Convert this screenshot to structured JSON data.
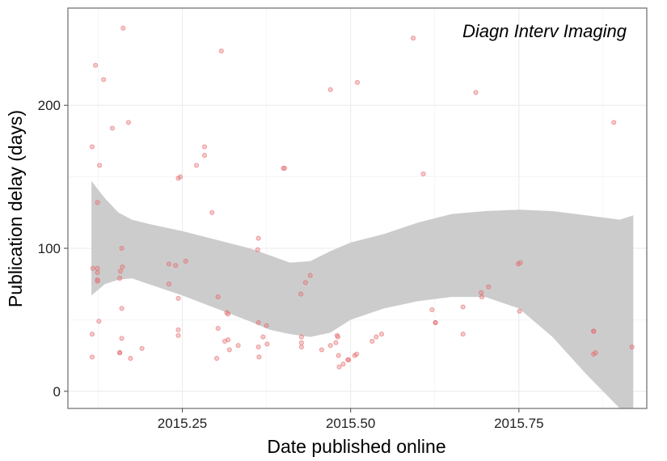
{
  "chart_data": {
    "type": "scatter",
    "title": "",
    "annotation": "Diagn Interv Imaging",
    "xlabel": "Date published online",
    "ylabel": "Publication delay (days)",
    "xlim": [
      2015.08,
      2015.94
    ],
    "ylim": [
      -12,
      268
    ],
    "x_ticks": [
      2015.25,
      2015.5,
      2015.75
    ],
    "x_tick_labels": [
      "2015.25",
      "2015.50",
      "2015.75"
    ],
    "y_ticks": [
      0,
      100,
      200
    ],
    "y_tick_labels": [
      "0",
      "100",
      "200"
    ],
    "grid": true,
    "legend": "none",
    "point_color": "#e8787a",
    "band_color": "#cccccc",
    "points": [
      [
        2015.121,
        228
      ],
      [
        2015.162,
        254
      ],
      [
        2015.133,
        218
      ],
      [
        2015.146,
        184
      ],
      [
        2015.17,
        188
      ],
      [
        2015.116,
        171
      ],
      [
        2015.127,
        158
      ],
      [
        2015.124,
        132
      ],
      [
        2015.117,
        86
      ],
      [
        2015.124,
        86
      ],
      [
        2015.124,
        83
      ],
      [
        2015.124,
        78
      ],
      [
        2015.124,
        77
      ],
      [
        2015.16,
        100
      ],
      [
        2015.161,
        87
      ],
      [
        2015.158,
        84
      ],
      [
        2015.157,
        79
      ],
      [
        2015.16,
        58
      ],
      [
        2015.126,
        49
      ],
      [
        2015.116,
        40
      ],
      [
        2015.116,
        24
      ],
      [
        2015.157,
        27
      ],
      [
        2015.157,
        27
      ],
      [
        2015.16,
        37
      ],
      [
        2015.173,
        23
      ],
      [
        2015.19,
        30
      ],
      [
        2015.23,
        89
      ],
      [
        2015.24,
        88
      ],
      [
        2015.255,
        91
      ],
      [
        2015.23,
        75
      ],
      [
        2015.244,
        65
      ],
      [
        2015.244,
        43
      ],
      [
        2015.244,
        39
      ],
      [
        2015.244,
        149
      ],
      [
        2015.247,
        150
      ],
      [
        2015.271,
        158
      ],
      [
        2015.283,
        171
      ],
      [
        2015.283,
        165
      ],
      [
        2015.294,
        125
      ],
      [
        2015.303,
        66
      ],
      [
        2015.303,
        44
      ],
      [
        2015.301,
        23
      ],
      [
        2015.308,
        238
      ],
      [
        2015.316,
        55
      ],
      [
        2015.318,
        54
      ],
      [
        2015.318,
        36
      ],
      [
        2015.313,
        35
      ],
      [
        2015.32,
        29
      ],
      [
        2015.333,
        32
      ],
      [
        2015.363,
        107
      ],
      [
        2015.362,
        99
      ],
      [
        2015.363,
        48
      ],
      [
        2015.37,
        38
      ],
      [
        2015.375,
        46
      ],
      [
        2015.376,
        33
      ],
      [
        2015.363,
        31
      ],
      [
        2015.364,
        24
      ],
      [
        2015.4,
        156
      ],
      [
        2015.402,
        156
      ],
      [
        2015.426,
        68
      ],
      [
        2015.433,
        76
      ],
      [
        2015.44,
        81
      ],
      [
        2015.427,
        38
      ],
      [
        2015.427,
        34
      ],
      [
        2015.427,
        31
      ],
      [
        2015.457,
        29
      ],
      [
        2015.47,
        211
      ],
      [
        2015.47,
        32
      ],
      [
        2015.478,
        34
      ],
      [
        2015.48,
        39
      ],
      [
        2015.481,
        38
      ],
      [
        2015.482,
        25
      ],
      [
        2015.483,
        17
      ],
      [
        2015.489,
        19
      ],
      [
        2015.496,
        22
      ],
      [
        2015.497,
        22
      ],
      [
        2015.506,
        25
      ],
      [
        2015.509,
        26
      ],
      [
        2015.51,
        216
      ],
      [
        2015.532,
        35
      ],
      [
        2015.538,
        38
      ],
      [
        2015.546,
        40
      ],
      [
        2015.593,
        247
      ],
      [
        2015.608,
        152
      ],
      [
        2015.621,
        57
      ],
      [
        2015.626,
        48
      ],
      [
        2015.626,
        48
      ],
      [
        2015.667,
        59
      ],
      [
        2015.667,
        40
      ],
      [
        2015.686,
        209
      ],
      [
        2015.694,
        69
      ],
      [
        2015.695,
        66
      ],
      [
        2015.705,
        73
      ],
      [
        2015.749,
        89
      ],
      [
        2015.752,
        90
      ],
      [
        2015.751,
        56
      ],
      [
        2015.861,
        42
      ],
      [
        2015.861,
        42
      ],
      [
        2015.861,
        26
      ],
      [
        2015.864,
        27
      ],
      [
        2015.891,
        188
      ],
      [
        2015.918,
        31
      ]
    ],
    "smooth_band": {
      "x": [
        2015.115,
        2015.135,
        2015.155,
        2015.175,
        2015.2,
        2015.25,
        2015.3,
        2015.35,
        2015.38,
        2015.41,
        2015.44,
        2015.47,
        2015.5,
        2015.55,
        2015.6,
        2015.65,
        2015.7,
        2015.75,
        2015.8,
        2015.85,
        2015.9,
        2015.92
      ],
      "upper": [
        147,
        135,
        125,
        120,
        117,
        112,
        106,
        100,
        95,
        90,
        91,
        98,
        104,
        110,
        118,
        124,
        126,
        127,
        126,
        123,
        120,
        123
      ],
      "lower": [
        67,
        75,
        78,
        79,
        75,
        67,
        58,
        49,
        43,
        40,
        38,
        41,
        50,
        58,
        63,
        66,
        66,
        58,
        38,
        12,
        -12,
        -20
      ]
    }
  }
}
